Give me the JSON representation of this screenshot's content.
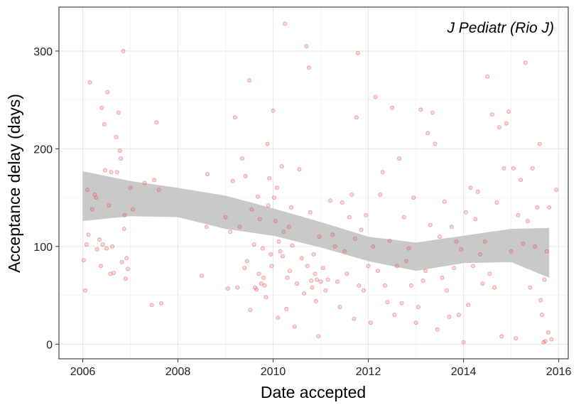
{
  "chart_data": {
    "type": "scatter",
    "title": "",
    "xlabel": "Date accepted",
    "ylabel": "Acceptance delay (days)",
    "annotation": "J Pediatr (Rio J)",
    "xlim": [
      2005.5,
      2016.2
    ],
    "ylim": [
      -15,
      345
    ],
    "xticks": [
      2006,
      2008,
      2010,
      2012,
      2014,
      2016
    ],
    "xtick_labels": [
      "2006",
      "2008",
      "2010",
      "2012",
      "2014",
      "2016"
    ],
    "yticks": [
      0,
      100,
      200,
      300
    ],
    "ytick_labels": [
      "0",
      "100",
      "200",
      "300"
    ],
    "grid": true,
    "point_color": "#e8474c",
    "band_color": "#bfbfbf",
    "points": [
      [
        2006.02,
        86
      ],
      [
        2006.05,
        55
      ],
      [
        2006.08,
        102
      ],
      [
        2006.1,
        158
      ],
      [
        2006.12,
        112
      ],
      [
        2006.15,
        268
      ],
      [
        2006.2,
        138
      ],
      [
        2006.25,
        153
      ],
      [
        2006.28,
        150
      ],
      [
        2006.3,
        97
      ],
      [
        2006.35,
        107
      ],
      [
        2006.38,
        80
      ],
      [
        2006.4,
        242
      ],
      [
        2006.42,
        102
      ],
      [
        2006.45,
        225
      ],
      [
        2006.47,
        178
      ],
      [
        2006.5,
        98
      ],
      [
        2006.52,
        258
      ],
      [
        2006.55,
        142
      ],
      [
        2006.58,
        72
      ],
      [
        2006.6,
        176
      ],
      [
        2006.62,
        100
      ],
      [
        2006.65,
        73
      ],
      [
        2006.7,
        212
      ],
      [
        2006.72,
        176
      ],
      [
        2006.75,
        237
      ],
      [
        2006.78,
        198
      ],
      [
        2006.8,
        190
      ],
      [
        2006.82,
        84
      ],
      [
        2006.85,
        300
      ],
      [
        2006.87,
        118
      ],
      [
        2006.88,
        132
      ],
      [
        2006.9,
        67
      ],
      [
        2006.92,
        88
      ],
      [
        2006.95,
        77
      ],
      [
        2007.0,
        160
      ],
      [
        2007.05,
        138
      ],
      [
        2007.3,
        165
      ],
      [
        2007.45,
        40
      ],
      [
        2007.5,
        168
      ],
      [
        2007.55,
        227
      ],
      [
        2007.6,
        158
      ],
      [
        2007.65,
        42
      ],
      [
        2008.5,
        70
      ],
      [
        2008.6,
        120
      ],
      [
        2008.62,
        174
      ],
      [
        2009.0,
        130
      ],
      [
        2009.05,
        57
      ],
      [
        2009.1,
        115
      ],
      [
        2009.15,
        167
      ],
      [
        2009.2,
        232
      ],
      [
        2009.25,
        58
      ],
      [
        2009.3,
        120
      ],
      [
        2009.35,
        190
      ],
      [
        2009.4,
        78
      ],
      [
        2009.42,
        172
      ],
      [
        2009.45,
        85
      ],
      [
        2009.5,
        270
      ],
      [
        2009.52,
        35
      ],
      [
        2009.55,
        138
      ],
      [
        2009.6,
        102
      ],
      [
        2009.62,
        58
      ],
      [
        2009.65,
        56
      ],
      [
        2009.68,
        151
      ],
      [
        2009.7,
        72
      ],
      [
        2009.72,
        128
      ],
      [
        2009.75,
        62
      ],
      [
        2009.78,
        98
      ],
      [
        2009.8,
        68
      ],
      [
        2009.82,
        60
      ],
      [
        2009.85,
        48
      ],
      [
        2009.88,
        205
      ],
      [
        2009.9,
        142
      ],
      [
        2009.92,
        170
      ],
      [
        2009.95,
        92
      ],
      [
        2009.97,
        80
      ],
      [
        2010.0,
        239
      ],
      [
        2010.02,
        150
      ],
      [
        2010.05,
        126
      ],
      [
        2010.08,
        160
      ],
      [
        2010.1,
        27
      ],
      [
        2010.12,
        105
      ],
      [
        2010.15,
        95
      ],
      [
        2010.18,
        182
      ],
      [
        2010.2,
        90
      ],
      [
        2010.22,
        115
      ],
      [
        2010.25,
        328
      ],
      [
        2010.28,
        36
      ],
      [
        2010.3,
        68
      ],
      [
        2010.33,
        120
      ],
      [
        2010.35,
        75
      ],
      [
        2010.38,
        140
      ],
      [
        2010.4,
        101
      ],
      [
        2010.45,
        18
      ],
      [
        2010.5,
        62
      ],
      [
        2010.55,
        179
      ],
      [
        2010.6,
        88
      ],
      [
        2010.65,
        52
      ],
      [
        2010.7,
        305
      ],
      [
        2010.72,
        80
      ],
      [
        2010.75,
        283
      ],
      [
        2010.78,
        135
      ],
      [
        2010.8,
        65
      ],
      [
        2010.82,
        58
      ],
      [
        2010.85,
        92
      ],
      [
        2010.88,
        72
      ],
      [
        2010.9,
        44
      ],
      [
        2010.92,
        66
      ],
      [
        2010.95,
        8
      ],
      [
        2010.97,
        110
      ],
      [
        2011.0,
        64
      ],
      [
        2011.05,
        78
      ],
      [
        2011.1,
        55
      ],
      [
        2011.15,
        66
      ],
      [
        2011.2,
        147
      ],
      [
        2011.25,
        112
      ],
      [
        2011.3,
        100
      ],
      [
        2011.35,
        64
      ],
      [
        2011.4,
        38
      ],
      [
        2011.45,
        145
      ],
      [
        2011.5,
        95
      ],
      [
        2011.55,
        72
      ],
      [
        2011.6,
        130
      ],
      [
        2011.65,
        153
      ],
      [
        2011.7,
        26
      ],
      [
        2011.72,
        108
      ],
      [
        2011.75,
        232
      ],
      [
        2011.78,
        298
      ],
      [
        2011.8,
        60
      ],
      [
        2011.85,
        117
      ],
      [
        2011.9,
        55
      ],
      [
        2011.95,
        132
      ],
      [
        2012.0,
        80
      ],
      [
        2012.05,
        22
      ],
      [
        2012.1,
        100
      ],
      [
        2012.15,
        253
      ],
      [
        2012.2,
        75
      ],
      [
        2012.25,
        153
      ],
      [
        2012.3,
        176
      ],
      [
        2012.35,
        60
      ],
      [
        2012.4,
        43
      ],
      [
        2012.45,
        106
      ],
      [
        2012.5,
        242
      ],
      [
        2012.55,
        30
      ],
      [
        2012.6,
        80
      ],
      [
        2012.65,
        190
      ],
      [
        2012.7,
        42
      ],
      [
        2012.75,
        130
      ],
      [
        2012.8,
        85
      ],
      [
        2012.85,
        98
      ],
      [
        2012.9,
        60
      ],
      [
        2012.95,
        150
      ],
      [
        2013.0,
        22
      ],
      [
        2013.05,
        38
      ],
      [
        2013.1,
        240
      ],
      [
        2013.15,
        65
      ],
      [
        2013.2,
        75
      ],
      [
        2013.25,
        216
      ],
      [
        2013.3,
        122
      ],
      [
        2013.35,
        237
      ],
      [
        2013.4,
        205
      ],
      [
        2013.45,
        15
      ],
      [
        2013.5,
        110
      ],
      [
        2013.55,
        68
      ],
      [
        2013.6,
        146
      ],
      [
        2013.65,
        55
      ],
      [
        2013.7,
        28
      ],
      [
        2013.75,
        120
      ],
      [
        2013.8,
        78
      ],
      [
        2013.85,
        105
      ],
      [
        2013.9,
        30
      ],
      [
        2013.95,
        97
      ],
      [
        2014.0,
        2
      ],
      [
        2014.05,
        135
      ],
      [
        2014.1,
        40
      ],
      [
        2014.15,
        160
      ],
      [
        2014.2,
        80
      ],
      [
        2014.25,
        128
      ],
      [
        2014.3,
        156
      ],
      [
        2014.35,
        92
      ],
      [
        2014.4,
        62
      ],
      [
        2014.45,
        105
      ],
      [
        2014.5,
        274
      ],
      [
        2014.55,
        72
      ],
      [
        2014.6,
        235
      ],
      [
        2014.65,
        58
      ],
      [
        2014.7,
        145
      ],
      [
        2014.75,
        222
      ],
      [
        2014.8,
        8
      ],
      [
        2014.85,
        180
      ],
      [
        2014.9,
        226
      ],
      [
        2014.95,
        238
      ],
      [
        2015.0,
        95
      ],
      [
        2015.05,
        180
      ],
      [
        2015.1,
        6
      ],
      [
        2015.15,
        132
      ],
      [
        2015.2,
        168
      ],
      [
        2015.25,
        103
      ],
      [
        2015.3,
        288
      ],
      [
        2015.35,
        126
      ],
      [
        2015.4,
        58
      ],
      [
        2015.45,
        180
      ],
      [
        2015.5,
        100
      ],
      [
        2015.55,
        140
      ],
      [
        2015.6,
        205
      ],
      [
        2015.62,
        45
      ],
      [
        2015.65,
        30
      ],
      [
        2015.68,
        2
      ],
      [
        2015.7,
        66
      ],
      [
        2015.72,
        3
      ],
      [
        2015.75,
        95
      ],
      [
        2015.78,
        12
      ],
      [
        2015.8,
        140
      ],
      [
        2015.85,
        5
      ],
      [
        2015.95,
        158
      ]
    ],
    "smooth_fit": {
      "x": [
        2006.0,
        2007.0,
        2008.0,
        2009.0,
        2010.0,
        2011.0,
        2012.0,
        2013.0,
        2014.0,
        2015.0,
        2015.8
      ],
      "y": [
        151,
        150,
        145,
        135,
        125,
        112,
        98,
        90,
        97,
        103,
        98
      ],
      "lower": [
        126,
        131,
        130,
        118,
        111,
        99,
        85,
        75,
        83,
        84,
        68
      ],
      "upper": [
        177,
        167,
        160,
        152,
        139,
        125,
        110,
        104,
        111,
        118,
        119
      ]
    }
  }
}
